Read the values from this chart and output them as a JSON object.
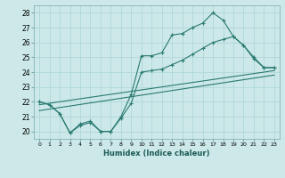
{
  "xlabel": "Humidex (Indice chaleur)",
  "bg_color": "#cce8e8",
  "grid_color": "#b0d8d8",
  "line_color": "#2a7a72",
  "xlim": [
    -0.5,
    23.5
  ],
  "ylim": [
    19.5,
    28.5
  ],
  "xticks": [
    0,
    1,
    2,
    3,
    4,
    5,
    6,
    7,
    8,
    9,
    10,
    11,
    12,
    13,
    14,
    15,
    16,
    17,
    18,
    19,
    20,
    21,
    22,
    23
  ],
  "yticks": [
    20,
    21,
    22,
    23,
    24,
    25,
    26,
    27,
    28
  ],
  "line1_x": [
    0,
    1,
    2,
    3,
    4,
    5,
    6,
    7,
    8,
    9,
    10,
    11,
    12,
    13,
    14,
    15,
    16,
    17,
    18,
    19,
    20,
    21,
    22,
    23
  ],
  "line1_y": [
    22.0,
    21.8,
    21.2,
    19.9,
    20.5,
    20.7,
    20.0,
    20.0,
    21.0,
    22.5,
    25.1,
    25.1,
    25.3,
    26.5,
    26.6,
    27.0,
    27.3,
    28.0,
    27.5,
    26.4,
    25.8,
    25.0,
    24.3,
    24.3
  ],
  "line2_x": [
    0,
    1,
    2,
    3,
    4,
    5,
    6,
    7,
    8,
    9,
    10,
    11,
    12,
    13,
    14,
    15,
    16,
    17,
    18,
    19,
    20,
    21,
    22,
    23
  ],
  "line2_y": [
    22.0,
    21.8,
    21.2,
    19.9,
    20.4,
    20.6,
    20.0,
    20.0,
    20.9,
    21.9,
    24.0,
    24.1,
    24.2,
    24.5,
    24.8,
    25.2,
    25.6,
    26.0,
    26.2,
    26.4,
    25.8,
    24.9,
    24.3,
    24.3
  ],
  "line3_x": [
    0,
    23
  ],
  "line3_y": [
    21.8,
    24.1
  ],
  "line4_x": [
    0,
    23
  ],
  "line4_y": [
    21.4,
    23.8
  ]
}
